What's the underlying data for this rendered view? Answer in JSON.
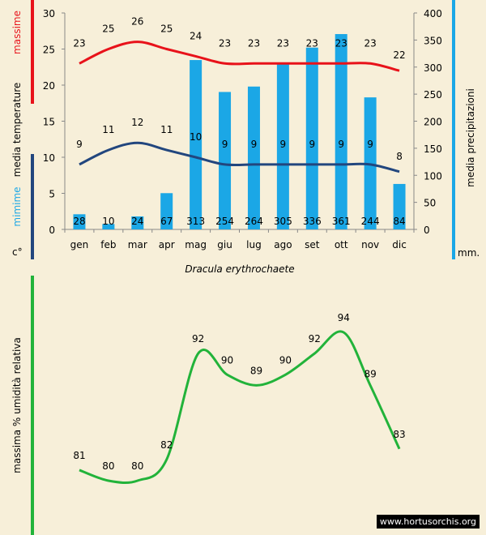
{
  "chart_data": [
    {
      "type": "bar+line",
      "title": "Dracula erythrochaete",
      "categories": [
        "gen",
        "feb",
        "mar",
        "apr",
        "mag",
        "giu",
        "lug",
        "ago",
        "set",
        "ott",
        "nov",
        "dic"
      ],
      "y_left": {
        "label_parts": [
          "massime",
          "media  temperature",
          "mimime",
          "c°"
        ],
        "ylim": [
          0,
          30
        ],
        "ticks": [
          "0",
          "5",
          "10",
          "15",
          "20",
          "25",
          "30"
        ]
      },
      "y_right": {
        "label": "media  precipitazioni",
        "unit": "mm.",
        "ylim": [
          0,
          400
        ],
        "ticks": [
          "0",
          "50",
          "100",
          "150",
          "200",
          "250",
          "300",
          "350",
          "400"
        ]
      },
      "series": [
        {
          "name": "massime",
          "type": "line",
          "color": "#e8121a",
          "axis": "left",
          "values": [
            23,
            25,
            26,
            25,
            24,
            23,
            23,
            23,
            23,
            23,
            23,
            22
          ]
        },
        {
          "name": "mimime",
          "type": "line",
          "color": "#22467e",
          "axis": "left",
          "values": [
            9,
            11,
            12,
            11,
            10,
            9,
            9,
            9,
            9,
            9,
            9,
            8
          ]
        },
        {
          "name": "precipitazioni",
          "type": "bar",
          "color": "#1ba7e6",
          "axis": "right",
          "values": [
            28,
            10,
            24,
            67,
            313,
            254,
            264,
            305,
            336,
            361,
            244,
            84
          ]
        }
      ]
    },
    {
      "type": "line",
      "ylabel": "massima % umidità relativa",
      "categories": [
        "gen",
        "feb",
        "mar",
        "apr",
        "mag",
        "giu",
        "lug",
        "ago",
        "set",
        "ott",
        "nov",
        "dic"
      ],
      "series": [
        {
          "name": "umidità",
          "color": "#22b33a",
          "values": [
            81,
            80,
            80,
            82,
            92,
            90,
            89,
            90,
            92,
            94,
            89,
            83
          ]
        }
      ]
    }
  ],
  "watermark": "www.hortusorchis.org"
}
